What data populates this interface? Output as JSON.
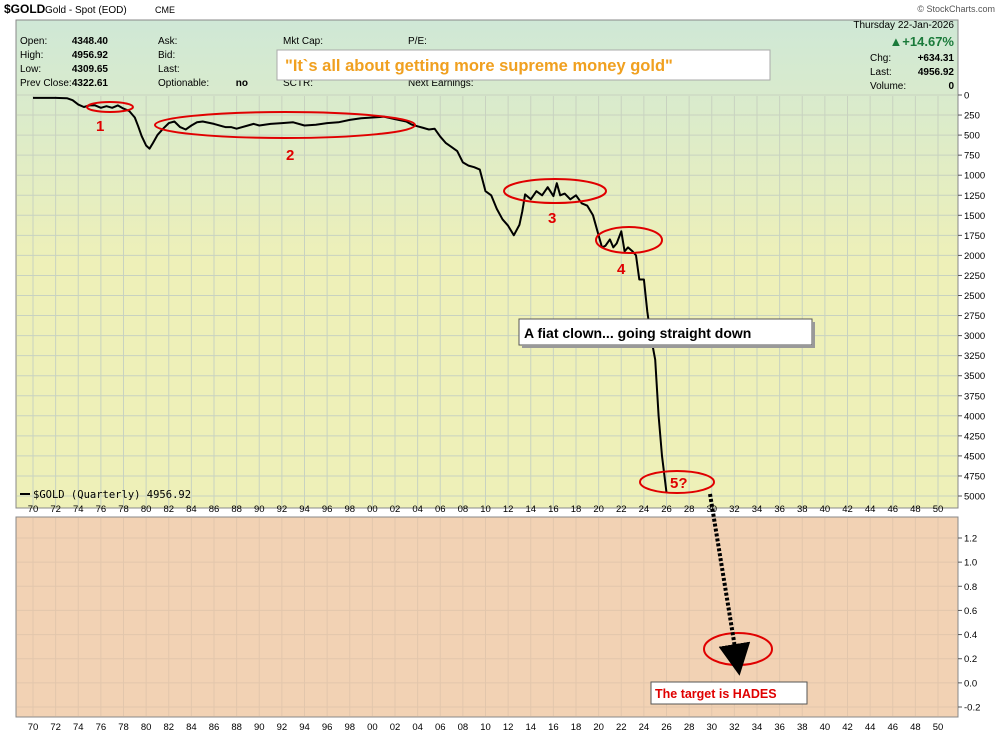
{
  "header": {
    "symbol": "$GOLD",
    "name": "Gold - Spot (EOD)",
    "exchange": "CME",
    "credit": "© StockCharts.com",
    "date": "Thursday  22-Jan-2026",
    "change_pct": "▲+14.67%",
    "fields_left": [
      {
        "label": "Open:",
        "value": "4348.40"
      },
      {
        "label": "High:",
        "value": "4956.92"
      },
      {
        "label": "Low:",
        "value": "4309.65"
      },
      {
        "label": "Prev Close:",
        "value": "4322.61"
      }
    ],
    "fields_mid": [
      "Ask:",
      "Bid:",
      "Last:",
      "Optionable:"
    ],
    "optionable_value": "no",
    "fields_cap": [
      "Mkt Cap:",
      "SCTR:"
    ],
    "fields_pe": [
      "P/E:",
      "Next Earnings:"
    ],
    "fields_right": [
      {
        "label": "Chg:",
        "value": "+634.31"
      },
      {
        "label": "Last:",
        "value": "4956.92"
      },
      {
        "label": "Volume:",
        "value": "0"
      }
    ]
  },
  "banner": "\"It`s all about getting more supreme money gold\"",
  "legend": "$GOLD (Quarterly) 4956.92",
  "annotations": {
    "labels": [
      "1",
      "2",
      "3",
      "4",
      "5?"
    ],
    "callout": "A fiat clown... going straight down",
    "target": "The target is HADES"
  },
  "colors": {
    "line": "#000000",
    "ellipse": "#e00000",
    "annotation_text": "#e00000",
    "banner_text": "#f0a020",
    "upper_bg_top": "#cfe8d6",
    "upper_bg_mid": "#eef0b8",
    "lower_bg": "#f2d2b4",
    "up_arrow": "#1a7a3a"
  },
  "chart_data": [
    {
      "type": "line",
      "scale": "inverted (labels run 0 at top to 5000 at bottom)",
      "title": "$GOLD Gold - Spot (EOD) CME",
      "xlabel": "",
      "ylabel": "",
      "x_ticks": [
        "70",
        "72",
        "74",
        "76",
        "78",
        "80",
        "82",
        "84",
        "86",
        "88",
        "90",
        "92",
        "94",
        "96",
        "98",
        "00",
        "02",
        "04",
        "06",
        "08",
        "10",
        "12",
        "14",
        "16",
        "18",
        "20",
        "22",
        "24",
        "26",
        "28",
        "30",
        "32",
        "34",
        "36",
        "38",
        "40",
        "42",
        "44",
        "46",
        "48",
        "50"
      ],
      "y_ticks": [
        0,
        250,
        500,
        750,
        1000,
        1250,
        1500,
        1750,
        2000,
        2250,
        2500,
        2750,
        3000,
        3250,
        3500,
        3750,
        4000,
        4250,
        4500,
        4750,
        5000
      ],
      "ylim": [
        0,
        5000
      ],
      "grid": true,
      "legend_position": "bottom-left",
      "series": [
        {
          "name": "$GOLD (Quarterly) 4956.92",
          "x": [
            1970,
            1971,
            1972,
            1973,
            1973.5,
            1974,
            1974.5,
            1975,
            1975.5,
            1976,
            1976.5,
            1977,
            1977.5,
            1978,
            1978.5,
            1979,
            1979.3,
            1979.6,
            1980,
            1980.3,
            1980.6,
            1981,
            1981.5,
            1982,
            1982.5,
            1983,
            1983.5,
            1984,
            1984.5,
            1985,
            1986,
            1987,
            1987.5,
            1988,
            1989,
            1989.5,
            1990,
            1991,
            1992,
            1993,
            1994,
            1995,
            1996,
            1997,
            1998,
            1999,
            2000,
            2001,
            2002,
            2003,
            2003.5,
            2004,
            2004.5,
            2005,
            2005.5,
            2006,
            2006.5,
            2007,
            2007.5,
            2008,
            2008.5,
            2009,
            2009.5,
            2010,
            2010.5,
            2011,
            2011.5,
            2012,
            2012.5,
            2013,
            2013.25,
            2013.5,
            2014,
            2014.5,
            2015,
            2015.5,
            2016,
            2016.3,
            2016.6,
            2017,
            2017.5,
            2018,
            2018.5,
            2019,
            2019.5,
            2020,
            2020.3,
            2020.6,
            2021,
            2021.3,
            2021.6,
            2022,
            2022.3,
            2022.6,
            2023,
            2023.3,
            2023.6,
            2024,
            2024.3,
            2024.6,
            2025,
            2025.3,
            2025.6,
            2026
          ],
          "values": [
            36,
            36,
            36,
            40,
            65,
            120,
            150,
            130,
            130,
            160,
            140,
            160,
            130,
            170,
            200,
            280,
            390,
            510,
            630,
            670,
            600,
            500,
            420,
            350,
            330,
            400,
            430,
            380,
            340,
            330,
            360,
            400,
            400,
            420,
            380,
            360,
            380,
            360,
            350,
            340,
            380,
            370,
            350,
            340,
            310,
            290,
            280,
            270,
            300,
            330,
            370,
            390,
            410,
            430,
            420,
            520,
            600,
            650,
            700,
            840,
            880,
            900,
            930,
            1200,
            1250,
            1420,
            1550,
            1630,
            1750,
            1620,
            1450,
            1240,
            1300,
            1200,
            1250,
            1150,
            1260,
            1100,
            1250,
            1230,
            1300,
            1250,
            1350,
            1380,
            1500,
            1750,
            1900,
            1880,
            1800,
            1900,
            1850,
            1700,
            1950,
            1900,
            1950,
            2000,
            2300,
            2300,
            2700,
            3000,
            3300,
            4000,
            4500,
            4957
          ]
        }
      ]
    },
    {
      "type": "line",
      "title": "",
      "x_ticks": [
        "70",
        "72",
        "74",
        "76",
        "78",
        "80",
        "82",
        "84",
        "86",
        "88",
        "90",
        "92",
        "94",
        "96",
        "98",
        "00",
        "02",
        "04",
        "06",
        "08",
        "10",
        "12",
        "14",
        "16",
        "18",
        "20",
        "22",
        "24",
        "26",
        "28",
        "30",
        "32",
        "34",
        "36",
        "38",
        "40",
        "42",
        "44",
        "46",
        "48",
        "50"
      ],
      "y_ticks": [
        1.2,
        1.0,
        0.8,
        0.6,
        0.4,
        0.2,
        0.0,
        -0.2
      ],
      "ylim": [
        -0.27,
        1.33
      ],
      "grid": true,
      "series": []
    }
  ]
}
